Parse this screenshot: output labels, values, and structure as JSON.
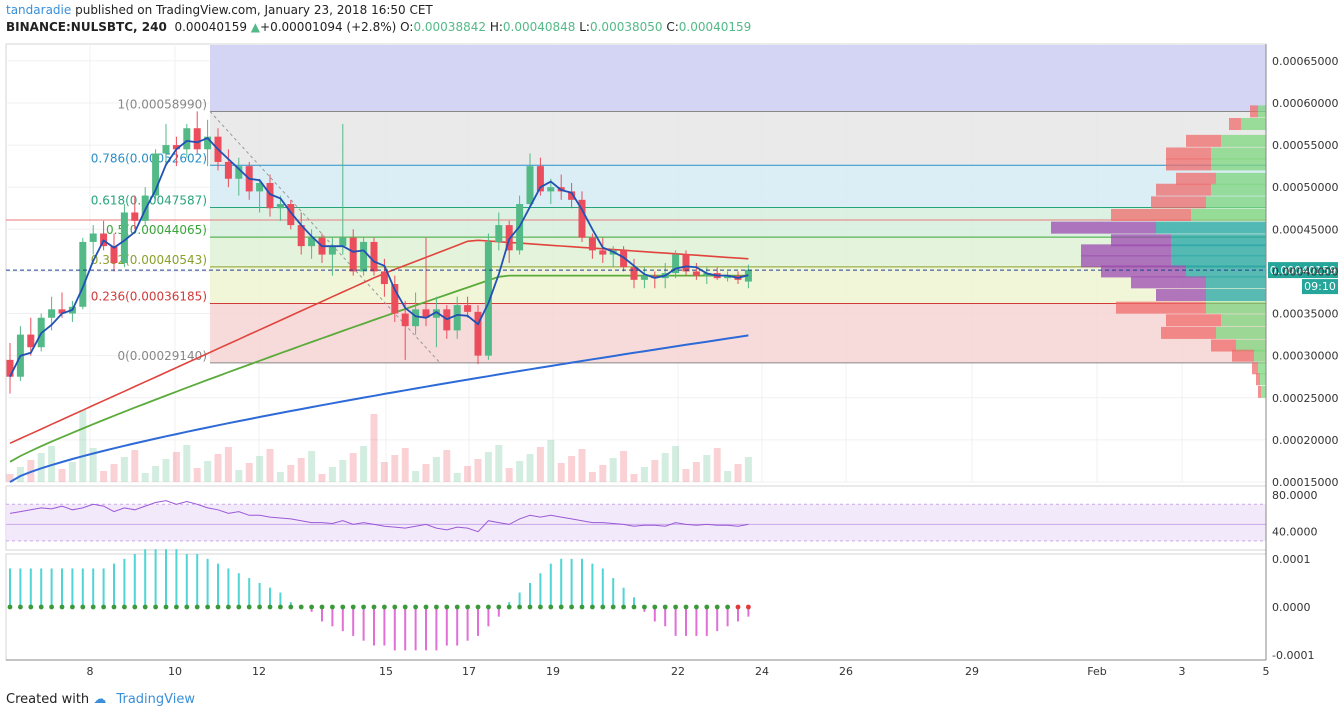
{
  "header": {
    "author": "tandaradie",
    "publish_text": "published on TradingView.com, January 23, 2018 16:50 CET",
    "symbol": "BINANCE:NULSBTC, 240",
    "last": "0.00040159",
    "change": "+0.00001094 (+2.8%)",
    "o_label": "O:",
    "o_value": "0.00038842",
    "h_label": "H:",
    "h_value": "0.00040848",
    "l_label": "L:",
    "l_value": "0.00038050",
    "c_label": "C:",
    "c_value": "0.00040159"
  },
  "footer": {
    "created_with": "Created with",
    "brand": "TradingView"
  },
  "colors": {
    "up": "#53b987",
    "down": "#eb4d5c",
    "ma_red": "#e0443c",
    "ma_green": "#5aab3a",
    "ma_blue": "#2d6ad8",
    "line_fast": "#2151b4",
    "rsi": "#9b59d6",
    "hist_up": "#4fd5d5",
    "hist_down": "#e070d6",
    "price_tag": "#26a69a"
  },
  "chart_data": [
    {
      "type": "candlestick",
      "ylim": [
        0.00015,
        0.00067
      ],
      "y_ticks": [
        "0.00015000",
        "0.00020000",
        "0.00025000",
        "0.00030000",
        "0.00035000",
        "0.00040000",
        "0.00045000",
        "0.00050000",
        "0.00055000",
        "0.00060000",
        "0.00065000"
      ],
      "x_ticks": [
        "8",
        "10",
        "12",
        "15",
        "17",
        "19",
        "22",
        "24",
        "26",
        "29",
        "Feb",
        "3",
        "5"
      ],
      "current_price": "0.00040159",
      "countdown": "09:10",
      "fib_levels": [
        {
          "ratio": "1",
          "price": 0.0005899,
          "label": "1(0.00058990)",
          "color": "#888888"
        },
        {
          "ratio": "0.786",
          "price": 0.00052602,
          "label": "0.786(0.00052602)",
          "color": "#2a8fc7"
        },
        {
          "ratio": "0.618",
          "price": 0.00047587,
          "label": "0.618(0.00047587)",
          "color": "#27a57a"
        },
        {
          "ratio": "0.5",
          "price": 0.00044065,
          "label": "0.5(0.00044065)",
          "color": "#3aa53a"
        },
        {
          "ratio": "0.382",
          "price": 0.00040543,
          "label": "0.382(0.00040543)",
          "color": "#8aa02a"
        },
        {
          "ratio": "0.236",
          "price": 0.00036185,
          "label": "0.236(0.00036185)",
          "color": "#d03a3a"
        },
        {
          "ratio": "0",
          "price": 0.0002914,
          "label": "0(0.00029140)",
          "color": "#888888"
        }
      ],
      "candles": [
        [
          0.000295,
          0.000315,
          0.000255,
          0.000275
        ],
        [
          0.000275,
          0.000335,
          0.00027,
          0.000325
        ],
        [
          0.000325,
          0.000345,
          0.0003,
          0.00031
        ],
        [
          0.00031,
          0.00035,
          0.000305,
          0.000345
        ],
        [
          0.000345,
          0.00037,
          0.00033,
          0.000355
        ],
        [
          0.000355,
          0.000375,
          0.000345,
          0.00035
        ],
        [
          0.00035,
          0.000365,
          0.00034,
          0.000358
        ],
        [
          0.000358,
          0.00044,
          0.000355,
          0.000435
        ],
        [
          0.000435,
          0.000455,
          0.00042,
          0.000445
        ],
        [
          0.000445,
          0.00046,
          0.000425,
          0.00043
        ],
        [
          0.00043,
          0.000445,
          0.0004,
          0.00041
        ],
        [
          0.00041,
          0.00048,
          0.000405,
          0.00047
        ],
        [
          0.00047,
          0.00049,
          0.00045,
          0.00046
        ],
        [
          0.00046,
          0.0005,
          0.000455,
          0.00049
        ],
        [
          0.00049,
          0.000545,
          0.000485,
          0.00054
        ],
        [
          0.00054,
          0.000575,
          0.000525,
          0.00055
        ],
        [
          0.00055,
          0.00056,
          0.000525,
          0.000545
        ],
        [
          0.000545,
          0.000575,
          0.000535,
          0.00057
        ],
        [
          0.00057,
          0.00059,
          0.00054,
          0.000545
        ],
        [
          0.000545,
          0.00058,
          0.000525,
          0.00056
        ],
        [
          0.00056,
          0.00057,
          0.00052,
          0.00053
        ],
        [
          0.00053,
          0.000545,
          0.0005,
          0.00051
        ],
        [
          0.00051,
          0.000535,
          0.00049,
          0.000525
        ],
        [
          0.000525,
          0.00053,
          0.000485,
          0.000495
        ],
        [
          0.000495,
          0.00051,
          0.00047,
          0.000505
        ],
        [
          0.000505,
          0.000515,
          0.000465,
          0.000475
        ],
        [
          0.000475,
          0.00049,
          0.00046,
          0.00048
        ],
        [
          0.00048,
          0.000485,
          0.00045,
          0.000455
        ],
        [
          0.000455,
          0.00047,
          0.00042,
          0.00043
        ],
        [
          0.00043,
          0.00045,
          0.000415,
          0.00044
        ],
        [
          0.00044,
          0.000445,
          0.00041,
          0.00042
        ],
        [
          0.00042,
          0.00044,
          0.000395,
          0.00043
        ],
        [
          0.00043,
          0.000575,
          0.00042,
          0.00044
        ],
        [
          0.00044,
          0.00045,
          0.000395,
          0.0004
        ],
        [
          0.0004,
          0.00044,
          0.000395,
          0.000435
        ],
        [
          0.000435,
          0.00044,
          0.000395,
          0.0004
        ],
        [
          0.0004,
          0.000415,
          0.00037,
          0.000385
        ],
        [
          0.000385,
          0.000395,
          0.00034,
          0.00035
        ],
        [
          0.00035,
          0.000365,
          0.000295,
          0.000335
        ],
        [
          0.000335,
          0.000375,
          0.000325,
          0.000355
        ],
        [
          0.000355,
          0.00044,
          0.000335,
          0.000345
        ],
        [
          0.000345,
          0.00037,
          0.00031,
          0.000355
        ],
        [
          0.000355,
          0.00036,
          0.00032,
          0.00033
        ],
        [
          0.00033,
          0.00037,
          0.00032,
          0.00036
        ],
        [
          0.00036,
          0.00037,
          0.000345,
          0.000352
        ],
        [
          0.000352,
          0.00036,
          0.00029,
          0.0003
        ],
        [
          0.0003,
          0.000445,
          0.000295,
          0.000435
        ],
        [
          0.000435,
          0.00047,
          0.000425,
          0.000455
        ],
        [
          0.000455,
          0.00046,
          0.00041,
          0.000425
        ],
        [
          0.000425,
          0.00049,
          0.00042,
          0.00048
        ],
        [
          0.00048,
          0.00054,
          0.000475,
          0.000525
        ],
        [
          0.000525,
          0.000535,
          0.00049,
          0.000495
        ],
        [
          0.000495,
          0.00051,
          0.00048,
          0.0005
        ],
        [
          0.0005,
          0.000515,
          0.000485,
          0.000495
        ],
        [
          0.000495,
          0.000505,
          0.000475,
          0.000485
        ],
        [
          0.000485,
          0.000495,
          0.000435,
          0.00044
        ],
        [
          0.00044,
          0.000445,
          0.000415,
          0.000425
        ],
        [
          0.000425,
          0.00044,
          0.00041,
          0.00042
        ],
        [
          0.00042,
          0.00043,
          0.000405,
          0.000425
        ],
        [
          0.000425,
          0.00043,
          0.0004,
          0.000405
        ],
        [
          0.000405,
          0.000415,
          0.00038,
          0.00039
        ],
        [
          0.00039,
          0.000405,
          0.00038,
          0.000395
        ],
        [
          0.000395,
          0.0004,
          0.00038,
          0.000392
        ],
        [
          0.000392,
          0.00041,
          0.00038,
          0.000398
        ],
        [
          0.000398,
          0.000425,
          0.000392,
          0.00042
        ],
        [
          0.00042,
          0.000425,
          0.000395,
          0.0004
        ],
        [
          0.0004,
          0.00041,
          0.00039,
          0.000395
        ],
        [
          0.000395,
          0.000405,
          0.000385,
          0.000398
        ],
        [
          0.000398,
          0.000405,
          0.00039,
          0.000392
        ],
        [
          0.000392,
          0.0004,
          0.000388,
          0.000395
        ],
        [
          0.000395,
          0.0004,
          0.000385,
          0.00039
        ],
        [
          0.000388,
          0.000408,
          0.00038,
          0.000402
        ]
      ],
      "volume_profile": [
        {
          "price": 0.00059,
          "up": 8,
          "down": 8
        },
        {
          "price": 0.000575,
          "up": 25,
          "down": 12
        },
        {
          "price": 0.000555,
          "up": 45,
          "down": 35
        },
        {
          "price": 0.00054,
          "up": 55,
          "down": 45
        },
        {
          "price": 0.000527,
          "up": 55,
          "down": 45
        },
        {
          "price": 0.00051,
          "up": 50,
          "down": 40
        },
        {
          "price": 0.000497,
          "up": 55,
          "down": 55
        },
        {
          "price": 0.000482,
          "up": 60,
          "down": 55
        },
        {
          "price": 0.000467,
          "up": 75,
          "down": 80
        },
        {
          "price": 0.000452,
          "up": 110,
          "down": 105
        },
        {
          "price": 0.000437,
          "up": 95,
          "down": 60
        },
        {
          "price": 0.000425,
          "up": 95,
          "down": 90
        },
        {
          "price": 0.000412,
          "up": 95,
          "down": 90
        },
        {
          "price": 0.0004,
          "up": 80,
          "down": 85
        },
        {
          "price": 0.000387,
          "up": 60,
          "down": 75
        },
        {
          "price": 0.000372,
          "up": 60,
          "down": 50
        },
        {
          "price": 0.000357,
          "up": 60,
          "down": 90
        },
        {
          "price": 0.000342,
          "up": 45,
          "down": 55
        },
        {
          "price": 0.000327,
          "up": 50,
          "down": 55
        },
        {
          "price": 0.000312,
          "up": 30,
          "down": 25
        },
        {
          "price": 0.0003,
          "up": 12,
          "down": 22
        },
        {
          "price": 0.000285,
          "up": 8,
          "down": 6
        },
        {
          "price": 0.000272,
          "up": 6,
          "down": 4
        },
        {
          "price": 0.000257,
          "up": 5,
          "down": 3
        }
      ]
    },
    {
      "type": "line",
      "name": "RSI",
      "ylim": [
        20,
        90
      ],
      "y_ticks": [
        "80.0000",
        "40.0000"
      ],
      "band": [
        30,
        70
      ],
      "values": [
        60,
        62,
        64,
        66,
        65,
        68,
        64,
        66,
        70,
        68,
        62,
        66,
        64,
        68,
        72,
        74,
        70,
        73,
        70,
        66,
        64,
        60,
        62,
        58,
        58,
        56,
        55,
        54,
        52,
        50,
        50,
        49,
        52,
        48,
        50,
        48,
        46,
        45,
        44,
        46,
        48,
        44,
        42,
        45,
        44,
        40,
        52,
        50,
        48,
        54,
        58,
        56,
        58,
        56,
        54,
        52,
        50,
        50,
        49,
        48,
        46,
        47,
        47,
        46,
        50,
        48,
        47,
        48,
        47,
        47,
        46,
        48
      ]
    },
    {
      "type": "bar",
      "name": "MACD histogram",
      "ylim": [
        -0.00011,
        0.00011
      ],
      "y_ticks": [
        "0.0001",
        "0.0000",
        "-0.0001"
      ],
      "values": [
        8e-05,
        8e-05,
        8e-05,
        8e-05,
        8e-05,
        8e-05,
        8e-05,
        8e-05,
        8e-05,
        8e-05,
        9e-05,
        0.0001,
        0.00011,
        0.00012,
        0.00012,
        0.00012,
        0.00012,
        0.00011,
        0.00011,
        0.0001,
        9e-05,
        8e-05,
        7e-05,
        6e-05,
        5e-05,
        4e-05,
        3e-05,
        1e-05,
        0.0,
        -1e-05,
        -3e-05,
        -4e-05,
        -5e-05,
        -6e-05,
        -7e-05,
        -8e-05,
        -8e-05,
        -9e-05,
        -9e-05,
        -9e-05,
        -9e-05,
        -9e-05,
        -8e-05,
        -8e-05,
        -7e-05,
        -6e-05,
        -4e-05,
        -2e-05,
        1e-05,
        3e-05,
        5e-05,
        7e-05,
        9e-05,
        0.0001,
        0.0001,
        0.0001,
        9e-05,
        8e-05,
        6e-05,
        4e-05,
        2e-05,
        -1e-05,
        -3e-05,
        -4e-05,
        -6e-05,
        -6e-05,
        -6e-05,
        -6e-05,
        -5e-05,
        -4e-05,
        -3e-05,
        -2e-05
      ]
    }
  ]
}
